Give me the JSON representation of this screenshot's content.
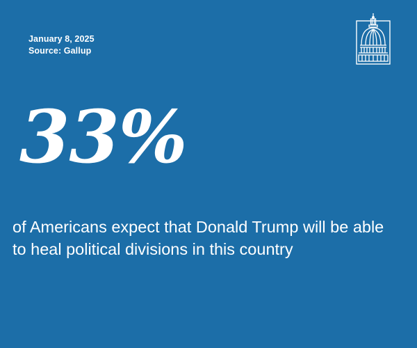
{
  "meta": {
    "date": "January 8, 2025",
    "source": "Source: Gallup"
  },
  "stat": {
    "value": "33%",
    "caption": "of Americans expect that Donald Trump will be able to heal political divisions in this country"
  },
  "logo": {
    "icon": "capitol-dome-icon"
  },
  "colors": {
    "background": "#1c6ea8",
    "text": "#ffffff"
  }
}
